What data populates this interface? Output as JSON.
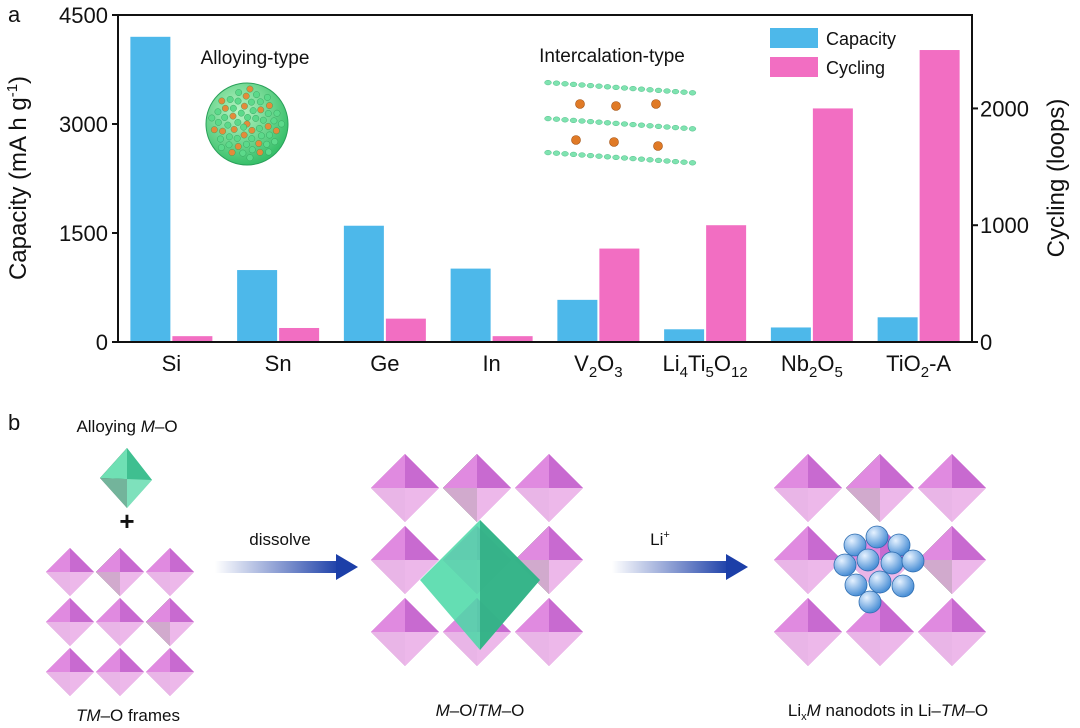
{
  "panel_a_label": "a",
  "panel_b_label": "b",
  "chart_data": {
    "type": "bar",
    "title": "",
    "categories": [
      "Si",
      "Sn",
      "Ge",
      "In",
      "V2O3",
      "Li4Ti5O12",
      "Nb2O5",
      "TiO2-A"
    ],
    "categories_rich": [
      [
        {
          "t": "Si"
        }
      ],
      [
        {
          "t": "Sn"
        }
      ],
      [
        {
          "t": "Ge"
        }
      ],
      [
        {
          "t": "In"
        }
      ],
      [
        {
          "t": "V"
        },
        {
          "t": "2",
          "sub": true
        },
        {
          "t": "O"
        },
        {
          "t": "3",
          "sub": true
        }
      ],
      [
        {
          "t": "Li"
        },
        {
          "t": "4",
          "sub": true
        },
        {
          "t": "Ti"
        },
        {
          "t": "5",
          "sub": true
        },
        {
          "t": "O"
        },
        {
          "t": "12",
          "sub": true
        }
      ],
      [
        {
          "t": "Nb"
        },
        {
          "t": "2",
          "sub": true
        },
        {
          "t": "O"
        },
        {
          "t": "5",
          "sub": true
        }
      ],
      [
        {
          "t": "TiO"
        },
        {
          "t": "2",
          "sub": true
        },
        {
          "t": "-A"
        }
      ]
    ],
    "series": [
      {
        "name": "Capacity",
        "axis": "left",
        "color": "#4db8ea",
        "values": [
          4200,
          990,
          1600,
          1010,
          580,
          175,
          200,
          340
        ]
      },
      {
        "name": "Cycling",
        "axis": "right",
        "color": "#f26ec2",
        "values": [
          50,
          120,
          200,
          50,
          800,
          1000,
          2000,
          2500
        ]
      }
    ],
    "ylabel_left": "Capacity (mA h g-1)",
    "ylabel_left_rich": [
      {
        "t": "Capacity (mA h g"
      },
      {
        "t": "-1",
        "sup": true
      },
      {
        "t": ")"
      }
    ],
    "ylabel_right": "Cycling (loops)",
    "ylim_left": [
      0,
      4500
    ],
    "ylim_right": [
      0,
      2800
    ],
    "yticks_left": [
      0,
      1500,
      3000,
      4500
    ],
    "yticks_right": [
      0,
      1000,
      2000
    ],
    "grid": false,
    "legend_placement": "top-right",
    "annotations": [
      "Alloying-type",
      "Intercalation-type"
    ]
  },
  "panel_b": {
    "alloy_label_prefix": "Alloying ",
    "alloy_label_m": "M",
    "alloy_label_suffix": "–O",
    "plus": "+",
    "frames_tm": "TM",
    "frames_suffix": "–O frames",
    "arrow1_label": "dissolve",
    "arrow2_base": "Li",
    "arrow2_sup": "+",
    "composite_m": "M",
    "composite_mid": "–O/",
    "composite_tm": "TM",
    "composite_end": "–O",
    "final_li": "Li",
    "final_x": "x",
    "final_m": "M",
    "final_mid": " nanodots in Li–",
    "final_tm": "TM",
    "final_end": "–O"
  }
}
